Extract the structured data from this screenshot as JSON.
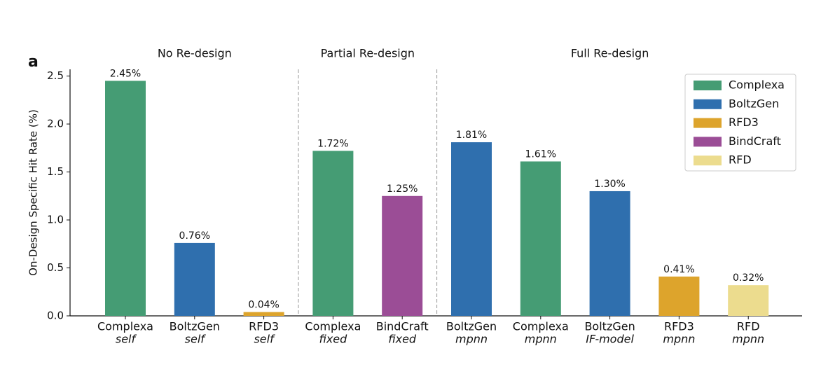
{
  "chart_data": {
    "type": "bar",
    "panel_label": "a",
    "ylabel": "On-Design Specific Hit Rate (%)",
    "categories": [
      "Complexa",
      "BoltzGen",
      "RFD3",
      "Complexa",
      "BindCraft",
      "BoltzGen",
      "Complexa",
      "BoltzGen",
      "RFD3",
      "RFD"
    ],
    "category_methods": [
      "self",
      "self",
      "self",
      "fixed",
      "fixed",
      "mpnn",
      "mpnn",
      "IF-model",
      "mpnn",
      "mpnn"
    ],
    "values": [
      2.45,
      0.76,
      0.04,
      1.72,
      1.25,
      1.81,
      1.61,
      1.3,
      0.41,
      0.32
    ],
    "value_labels": [
      "2.45%",
      "0.76%",
      "0.04%",
      "1.72%",
      "1.25%",
      "1.81%",
      "1.61%",
      "1.30%",
      "0.41%",
      "0.32%"
    ],
    "colors": [
      "#459c74",
      "#2f6fae",
      "#dda42c",
      "#459c74",
      "#9b4d96",
      "#2f6fae",
      "#459c74",
      "#2f6fae",
      "#dda42c",
      "#ecdc8e"
    ],
    "groups": [
      {
        "label": "No Re-design",
        "size": 3
      },
      {
        "label": "Partial Re-design",
        "size": 2
      },
      {
        "label": "Full Re-design",
        "size": 5
      }
    ],
    "legend": [
      {
        "name": "Complexa",
        "color": "#459c74"
      },
      {
        "name": "BoltzGen",
        "color": "#2f6fae"
      },
      {
        "name": "RFD3",
        "color": "#dda42c"
      },
      {
        "name": "BindCraft",
        "color": "#9b4d96"
      },
      {
        "name": "RFD",
        "color": "#ecdc8e"
      }
    ],
    "legend_position": "upper right",
    "ylim": [
      0,
      2.57
    ],
    "yticks": [
      {
        "value": 0,
        "label": "0.0"
      },
      {
        "value": 0.5,
        "label": "0.5"
      },
      {
        "value": 1,
        "label": "1.0"
      },
      {
        "value": 1.5,
        "label": "1.5"
      },
      {
        "value": 2,
        "label": "2.0"
      },
      {
        "value": 2.5,
        "label": "2.5"
      }
    ]
  }
}
